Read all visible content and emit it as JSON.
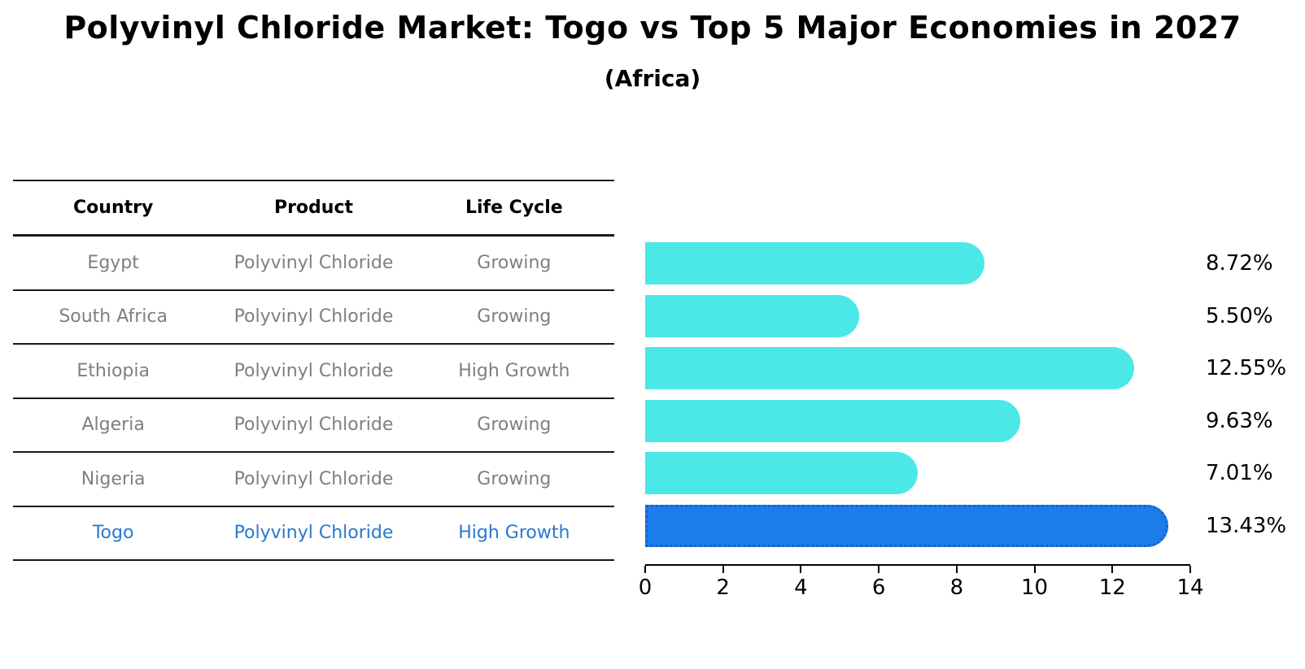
{
  "title": "Polyvinyl Chloride Market: Togo vs Top 5 Major Economies in 2027",
  "subtitle": "(Africa)",
  "table": {
    "headers": {
      "country": "Country",
      "product": "Product",
      "life_cycle": "Life Cycle"
    },
    "rows": [
      {
        "country": "Egypt",
        "product": "Polyvinyl Chloride",
        "life_cycle": "Growing",
        "highlight": false
      },
      {
        "country": "South Africa",
        "product": "Polyvinyl Chloride",
        "life_cycle": "Growing",
        "highlight": false
      },
      {
        "country": "Ethiopia",
        "product": "Polyvinyl Chloride",
        "life_cycle": "High Growth",
        "highlight": false
      },
      {
        "country": "Algeria",
        "product": "Polyvinyl Chloride",
        "life_cycle": "Growing",
        "highlight": false
      },
      {
        "country": "Nigeria",
        "product": "Polyvinyl Chloride",
        "life_cycle": "Growing",
        "highlight": false
      },
      {
        "country": "Togo",
        "product": "Polyvinyl Chloride",
        "life_cycle": "High Growth",
        "highlight": true
      }
    ]
  },
  "chart_data": {
    "type": "bar",
    "orientation": "horizontal",
    "categories": [
      "Egypt",
      "South Africa",
      "Ethiopia",
      "Algeria",
      "Nigeria",
      "Togo"
    ],
    "values": [
      8.72,
      5.5,
      12.55,
      9.63,
      7.01,
      13.43
    ],
    "value_labels": [
      "8.72%",
      "5.50%",
      "12.55%",
      "9.63%",
      "7.01%",
      "13.43%"
    ],
    "highlight_category": "Togo",
    "xlim": [
      0,
      14
    ],
    "x_ticks": [
      0,
      2,
      4,
      6,
      8,
      10,
      12,
      14
    ],
    "grid": false,
    "legend": false,
    "colors": {
      "bar_default": "#4BE8E7",
      "bar_highlight": "#1C7CE8",
      "bar_highlight_border": "#0F66D0",
      "highlight_text": "#2979CE",
      "row_text": "#7f7f7f",
      "header_text": "#000000"
    }
  }
}
